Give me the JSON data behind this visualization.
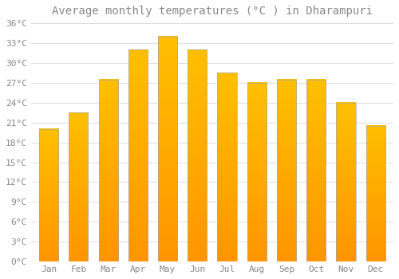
{
  "title": "Average monthly temperatures (°C ) in Dharampuri",
  "months": [
    "Jan",
    "Feb",
    "Mar",
    "Apr",
    "May",
    "Jun",
    "Jul",
    "Aug",
    "Sep",
    "Oct",
    "Nov",
    "Dec"
  ],
  "temperatures": [
    20.0,
    22.5,
    27.5,
    32.0,
    34.0,
    32.0,
    28.5,
    27.0,
    27.5,
    27.5,
    24.0,
    20.5
  ],
  "bar_color_top": "#FFC000",
  "bar_color_bottom": "#FF9500",
  "bar_edge_color": "#AAAAAA",
  "background_color": "#FFFFFF",
  "grid_color": "#DDDDDD",
  "text_color": "#888888",
  "ylim": [
    0,
    36
  ],
  "ytick_step": 3,
  "title_fontsize": 10,
  "tick_fontsize": 8,
  "bar_width": 0.65
}
